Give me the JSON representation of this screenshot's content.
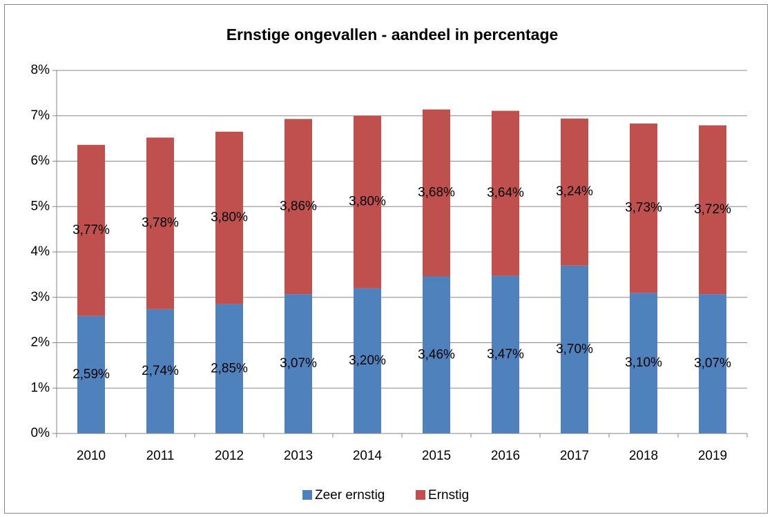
{
  "chart_data": {
    "type": "stacked_bar",
    "title": "Ernstige ongevallen - aandeel in percentage",
    "categories": [
      "2010",
      "2011",
      "2012",
      "2013",
      "2014",
      "2015",
      "2016",
      "2017",
      "2018",
      "2019"
    ],
    "series": [
      {
        "name": "Zeer ernstig",
        "color": "#4f81bd",
        "values": [
          2.59,
          2.74,
          2.85,
          3.07,
          3.2,
          3.46,
          3.47,
          3.7,
          3.1,
          3.07
        ],
        "value_labels": [
          "2,59%",
          "2,74%",
          "2,85%",
          "3,07%",
          "3,20%",
          "3,46%",
          "3,47%",
          "3,70%",
          "3,10%",
          "3,07%"
        ]
      },
      {
        "name": "Ernstig",
        "color": "#c0504d",
        "values": [
          3.77,
          3.78,
          3.8,
          3.86,
          3.8,
          3.68,
          3.64,
          3.24,
          3.73,
          3.72
        ],
        "value_labels": [
          "3,77%",
          "3,78%",
          "3,80%",
          "3,86%",
          "3,80%",
          "3,68%",
          "3,64%",
          "3,24%",
          "3,73%",
          "3,72%"
        ]
      }
    ],
    "ylim": [
      0,
      8
    ],
    "yticks": [
      {
        "value": 0,
        "label": "0%"
      },
      {
        "value": 1,
        "label": "1%"
      },
      {
        "value": 2,
        "label": "2%"
      },
      {
        "value": 3,
        "label": "3%"
      },
      {
        "value": 4,
        "label": "4%"
      },
      {
        "value": 5,
        "label": "5%"
      },
      {
        "value": 6,
        "label": "6%"
      },
      {
        "value": 7,
        "label": "7%"
      },
      {
        "value": 8,
        "label": "8%"
      }
    ],
    "grid": true,
    "legend": "bottom"
  }
}
